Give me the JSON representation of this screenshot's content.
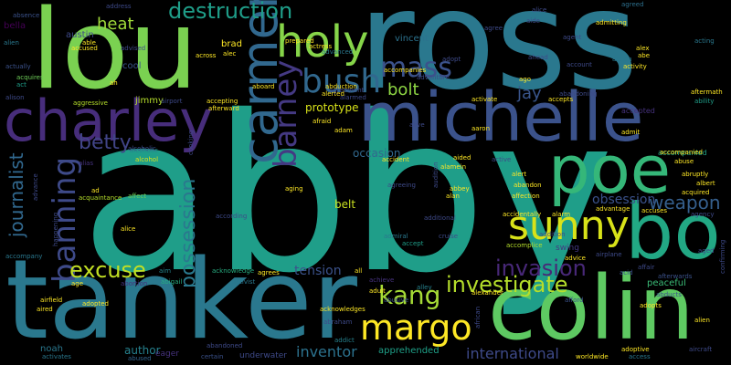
{
  "words": [
    {
      "text": "abby",
      "color": "#1f9e89"
    },
    {
      "text": "ross",
      "color": "#2a788e"
    },
    {
      "text": "lou",
      "color": "#7ad151"
    },
    {
      "text": "tanker",
      "color": "#2a788e"
    },
    {
      "text": "colin",
      "color": "#5ec962"
    },
    {
      "text": "michelle",
      "color": "#3b528b"
    },
    {
      "text": "charley",
      "color": "#472d7b"
    },
    {
      "text": "bo",
      "color": "#22a884"
    },
    {
      "text": "poe",
      "color": "#35b779"
    },
    {
      "text": "carmen",
      "color": "#31688e"
    },
    {
      "text": "sunny",
      "color": "#d8e219"
    },
    {
      "text": "holy",
      "color": "#86d549"
    },
    {
      "text": "margo",
      "color": "#fde725"
    },
    {
      "text": "barney",
      "color": "#443983"
    },
    {
      "text": "bush",
      "color": "#31688e"
    },
    {
      "text": "banning",
      "color": "#3e4a89"
    },
    {
      "text": "mass",
      "color": "#3b528b"
    },
    {
      "text": "destruction",
      "color": "#1f9e89"
    },
    {
      "text": "kang",
      "color": "#a5db36"
    },
    {
      "text": "excuse",
      "color": "#c2df23"
    },
    {
      "text": "invasion",
      "color": "#482878"
    },
    {
      "text": "investigate",
      "color": "#b5de2b"
    },
    {
      "text": "possession",
      "color": "#2a788e"
    },
    {
      "text": "journalist",
      "color": "#31688e"
    },
    {
      "text": "betty",
      "color": "#414487"
    },
    {
      "text": "weapon",
      "color": "#355f8d"
    },
    {
      "text": "heat",
      "color": "#a0da39"
    },
    {
      "text": "bolt",
      "color": "#8fd744"
    },
    {
      "text": "jay",
      "color": "#39558c"
    },
    {
      "text": "inventor",
      "color": "#2c728e"
    },
    {
      "text": "international",
      "color": "#3e4a89"
    },
    {
      "text": "tension",
      "color": "#3b528b"
    },
    {
      "text": "obsession",
      "color": "#3b528b"
    },
    {
      "text": "prototype",
      "color": "#d8e219"
    },
    {
      "text": "occasion",
      "color": "#31688e"
    },
    {
      "text": "belt",
      "color": "#c8e020"
    },
    {
      "text": "author",
      "color": "#26818e"
    },
    {
      "text": "apprehended",
      "color": "#1fa088"
    },
    {
      "text": "peaceful",
      "color": "#3aba76"
    },
    {
      "text": "vincent",
      "color": "#2c728e"
    },
    {
      "text": "austin",
      "color": "#3e4a89"
    },
    {
      "text": "brad",
      "color": "#fde725"
    },
    {
      "text": "cool",
      "color": "#39558c"
    },
    {
      "text": "bella",
      "color": "#440154"
    },
    {
      "text": "jimmy",
      "color": "#b5de2b"
    },
    {
      "text": "noah",
      "color": "#2a788e"
    },
    {
      "text": "eager",
      "color": "#46327e"
    },
    {
      "text": "underwater",
      "color": "#3e4a89"
    },
    {
      "text": "swing",
      "color": "#443983"
    },
    {
      "text": "accepted",
      "color": "#46327e"
    },
    {
      "text": "accompanied",
      "color": "#20a386"
    },
    {
      "text": "agreed",
      "color": "#2d708e"
    },
    {
      "text": "absence",
      "color": "#3b528b"
    },
    {
      "text": "aggressive",
      "color": "#b5de2b"
    },
    {
      "text": "alien",
      "color": "#2a788e"
    },
    {
      "text": "actually",
      "color": "#3b528b"
    },
    {
      "text": "acquires",
      "color": "#6ece58"
    },
    {
      "text": "act",
      "color": "#1f9e89"
    },
    {
      "text": "ah",
      "color": "#fde725"
    },
    {
      "text": "alcoholic",
      "color": "#26828e"
    },
    {
      "text": "alcohol",
      "color": "#dde318"
    },
    {
      "text": "alias",
      "color": "#46327e"
    },
    {
      "text": "ad",
      "color": "#fde725"
    },
    {
      "text": "acquaintance",
      "color": "#b5de2b"
    },
    {
      "text": "alice",
      "color": "#fde725"
    },
    {
      "text": "affect",
      "color": "#6ece58"
    },
    {
      "text": "accompany",
      "color": "#2a788e"
    },
    {
      "text": "age",
      "color": "#fde725"
    },
    {
      "text": "abortion",
      "color": "#46327e"
    },
    {
      "text": "abigail",
      "color": "#27ad81"
    },
    {
      "text": "aim",
      "color": "#25848e"
    },
    {
      "text": "airfield",
      "color": "#fde725"
    },
    {
      "text": "aired",
      "color": "#fde725"
    },
    {
      "text": "adopted",
      "color": "#fde725"
    },
    {
      "text": "activates",
      "color": "#2a788e"
    },
    {
      "text": "abused",
      "color": "#33638d"
    },
    {
      "text": "certain",
      "color": "#3b528b"
    },
    {
      "text": "abandoned",
      "color": "#3e4a89"
    },
    {
      "text": "acknowledge",
      "color": "#27ad81"
    },
    {
      "text": "activist",
      "color": "#2a788e"
    },
    {
      "text": "abraham",
      "color": "#3e4a89"
    },
    {
      "text": "acknowledges",
      "color": "#fde725"
    },
    {
      "text": "addict",
      "color": "#26828e"
    },
    {
      "text": "adult",
      "color": "#fde725"
    },
    {
      "text": "achieve",
      "color": "#46327e"
    },
    {
      "text": "abusive",
      "color": "#3b528b"
    },
    {
      "text": "admiral",
      "color": "#2a788e"
    },
    {
      "text": "alley",
      "color": "#26828e"
    },
    {
      "text": "alexander",
      "color": "#fde725"
    },
    {
      "text": "accept",
      "color": "#1f9e89"
    },
    {
      "text": "cruise",
      "color": "#3e4a89"
    },
    {
      "text": "accomplice",
      "color": "#b5de2b"
    },
    {
      "text": "advice",
      "color": "#fde725"
    },
    {
      "text": "airplane",
      "color": "#3e4a89"
    },
    {
      "text": "acid",
      "color": "#3b528b"
    },
    {
      "text": "affair",
      "color": "#3e4a89"
    },
    {
      "text": "afterwards",
      "color": "#3b528b"
    },
    {
      "text": "adopts",
      "color": "#fde725"
    },
    {
      "text": "abducts",
      "color": "#3b528b"
    },
    {
      "text": "afford",
      "color": "#3b528b"
    },
    {
      "text": "adoptive",
      "color": "#fde725"
    },
    {
      "text": "access",
      "color": "#2a788e"
    },
    {
      "text": "worldwide",
      "color": "#fde725"
    },
    {
      "text": "alien",
      "color": "#fde725"
    },
    {
      "text": "aircraft",
      "color": "#3e4a89"
    },
    {
      "text": "confirming",
      "color": "#3e4a89"
    },
    {
      "text": "aged",
      "color": "#3e4a89"
    },
    {
      "text": "aftermath",
      "color": "#fde725"
    },
    {
      "text": "ability",
      "color": "#1f9e89"
    },
    {
      "text": "admit",
      "color": "#fde725"
    },
    {
      "text": "accompanied",
      "color": "#fde725"
    },
    {
      "text": "abuse",
      "color": "#fde725"
    },
    {
      "text": "abruptly",
      "color": "#fde725"
    },
    {
      "text": "albert",
      "color": "#fde725"
    },
    {
      "text": "acquired",
      "color": "#fde725"
    },
    {
      "text": "agency",
      "color": "#3e4a89"
    },
    {
      "text": "alex",
      "color": "#fde725"
    },
    {
      "text": "abe",
      "color": "#fde725"
    },
    {
      "text": "action",
      "color": "#2a788e"
    },
    {
      "text": "activity",
      "color": "#fde725"
    },
    {
      "text": "acting",
      "color": "#2a788e"
    },
    {
      "text": "admitting",
      "color": "#fde725"
    },
    {
      "text": "agent",
      "color": "#3e4a89"
    },
    {
      "text": "ago",
      "color": "#fde725"
    },
    {
      "text": "accepts",
      "color": "#fde725"
    },
    {
      "text": "activate",
      "color": "#fde725"
    },
    {
      "text": "aaron",
      "color": "#fde725"
    },
    {
      "text": "alarm",
      "color": "#fde725"
    },
    {
      "text": "alamein",
      "color": "#fde725"
    },
    {
      "text": "alan",
      "color": "#fde725"
    },
    {
      "text": "abbey",
      "color": "#fde725"
    },
    {
      "text": "abandon",
      "color": "#fde725"
    },
    {
      "text": "affection",
      "color": "#fde725"
    },
    {
      "text": "alert",
      "color": "#fde725"
    },
    {
      "text": "accidentally",
      "color": "#fde725"
    },
    {
      "text": "advantage",
      "color": "#fde725"
    },
    {
      "text": "accuses",
      "color": "#fde725"
    },
    {
      "text": "accident",
      "color": "#fde725"
    },
    {
      "text": "aided",
      "color": "#fde725"
    },
    {
      "text": "alerted",
      "color": "#fde725"
    },
    {
      "text": "abduction",
      "color": "#fde725"
    },
    {
      "text": "prepared",
      "color": "#fde725"
    },
    {
      "text": "actress",
      "color": "#fde725"
    },
    {
      "text": "advanced",
      "color": "#2a788e"
    },
    {
      "text": "afraid",
      "color": "#fde725"
    },
    {
      "text": "adam",
      "color": "#fde725"
    },
    {
      "text": "agreement",
      "color": "#3e4a89"
    },
    {
      "text": "aboard",
      "color": "#fde725"
    },
    {
      "text": "aging",
      "color": "#fde725"
    },
    {
      "text": "accepting",
      "color": "#fde725"
    },
    {
      "text": "afterward",
      "color": "#fde725"
    },
    {
      "text": "airport",
      "color": "#3e4a89"
    },
    {
      "text": "according",
      "color": "#3e4a89"
    },
    {
      "text": "able",
      "color": "#fde725"
    },
    {
      "text": "accused",
      "color": "#fde725"
    },
    {
      "text": "across",
      "color": "#fde725"
    },
    {
      "text": "accompanies",
      "color": "#fde725"
    },
    {
      "text": "adventure",
      "color": "#3e4a89"
    },
    {
      "text": "adopt",
      "color": "#3e4a89"
    },
    {
      "text": "agree",
      "color": "#3e4a89"
    },
    {
      "text": "additional",
      "color": "#3e4a89"
    },
    {
      "text": "agreeing",
      "color": "#3e4a89"
    },
    {
      "text": "alive",
      "color": "#3e4a89"
    },
    {
      "text": "active",
      "color": "#3e4a89"
    },
    {
      "text": "address",
      "color": "#3e4a89"
    },
    {
      "text": "advised",
      "color": "#3e4a89"
    },
    {
      "text": "alec",
      "color": "#fde725"
    },
    {
      "text": "account",
      "color": "#3e4a89"
    },
    {
      "text": "ahead",
      "color": "#3e4a89"
    },
    {
      "text": "abandoning",
      "color": "#3e4a89"
    },
    {
      "text": "addition",
      "color": "#3e4a89"
    },
    {
      "text": "cooking",
      "color": "#3e4a89"
    },
    {
      "text": "advance",
      "color": "#3e4a89"
    },
    {
      "text": "alison",
      "color": "#3e4a89"
    },
    {
      "text": "alarmed",
      "color": "#3e4a89"
    },
    {
      "text": "happening",
      "color": "#3e4a89"
    },
    {
      "text": "african",
      "color": "#3e4a89"
    },
    {
      "text": "audition",
      "color": "#3e4a89"
    },
    {
      "text": "alice",
      "color": "#3e4a89"
    },
    {
      "text": "aide",
      "color": "#3e4a89"
    },
    {
      "text": "agrees",
      "color": "#fde725"
    },
    {
      "text": "all",
      "color": "#fde725"
    },
    {
      "text": "alcoholic",
      "color": "#3e4a89"
    }
  ]
}
